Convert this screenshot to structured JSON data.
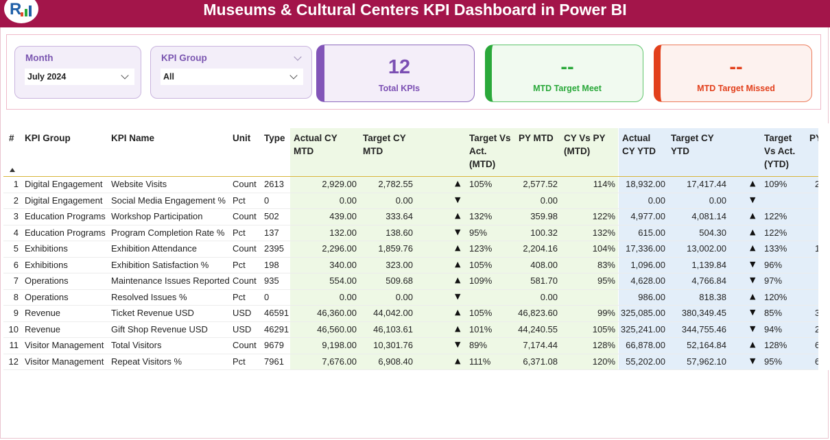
{
  "header": {
    "title": "Museums & Cultural Centers KPI Dashboard in Power BI"
  },
  "logo": {
    "letter": "R"
  },
  "filters": {
    "month": {
      "label": "Month",
      "value": "July 2024"
    },
    "kpi_group": {
      "label": "KPI Group",
      "value": "All"
    }
  },
  "cards": {
    "total": {
      "value": "12",
      "caption": "Total KPIs",
      "color": "#7b4fb3"
    },
    "meet": {
      "value": "--",
      "caption": "MTD Target Meet",
      "color": "#2aa83a"
    },
    "missed": {
      "value": "--",
      "caption": "MTD Target Missed",
      "color": "#e2401c"
    }
  },
  "table": {
    "headers": {
      "num": "#",
      "kpi_group": "KPI Group",
      "kpi_name": "KPI Name",
      "unit": "Unit",
      "type": "Type",
      "actual_cy_mtd": [
        "Actual CY",
        "MTD"
      ],
      "target_cy_mtd": [
        "Target CY",
        "MTD"
      ],
      "target_vs_act_mtd": [
        "Target Vs",
        "Act.",
        "(MTD)"
      ],
      "py_mtd": [
        "PY MTD"
      ],
      "cy_vs_py_mtd": [
        "CY Vs PY",
        "(MTD)"
      ],
      "actual_cy_ytd": [
        "Actual",
        "CY YTD"
      ],
      "target_cy_ytd": [
        "Target CY",
        "YTD"
      ],
      "target_vs_act_ytd": [
        "Target",
        "Vs Act.",
        "(YTD)"
      ],
      "py_ytd": [
        "PY"
      ]
    },
    "rows": [
      {
        "num": "1",
        "group": "Digital Engagement",
        "name": "Website Visits",
        "unit": "Count",
        "type": "2613",
        "act_mtd": "2,929.00",
        "tgt_mtd": "2,782.55",
        "arr_mtd": "▲",
        "pct_mtd": "105%",
        "py_mtd": "2,577.52",
        "cyvspy": "114%",
        "act_ytd": "18,932.00",
        "tgt_ytd": "17,417.44",
        "arr_ytd": "▲",
        "pct_ytd": "109%",
        "py_ytd": "2"
      },
      {
        "num": "2",
        "group": "Digital Engagement",
        "name": "Social Media Engagement %",
        "unit": "Pct",
        "type": "0",
        "act_mtd": "0.00",
        "tgt_mtd": "0.00",
        "arr_mtd": "▼",
        "pct_mtd": "",
        "py_mtd": "0.00",
        "cyvspy": "",
        "act_ytd": "0.00",
        "tgt_ytd": "0.00",
        "arr_ytd": "▼",
        "pct_ytd": "",
        "py_ytd": ""
      },
      {
        "num": "3",
        "group": "Education Programs",
        "name": "Workshop Participation",
        "unit": "Count",
        "type": "502",
        "act_mtd": "439.00",
        "tgt_mtd": "333.64",
        "arr_mtd": "▲",
        "pct_mtd": "132%",
        "py_mtd": "359.98",
        "cyvspy": "122%",
        "act_ytd": "4,977.00",
        "tgt_ytd": "4,081.14",
        "arr_ytd": "▲",
        "pct_ytd": "122%",
        "py_ytd": ""
      },
      {
        "num": "4",
        "group": "Education Programs",
        "name": "Program Completion Rate %",
        "unit": "Pct",
        "type": "137",
        "act_mtd": "132.00",
        "tgt_mtd": "138.60",
        "arr_mtd": "▼",
        "pct_mtd": "95%",
        "py_mtd": "100.32",
        "cyvspy": "132%",
        "act_ytd": "615.00",
        "tgt_ytd": "504.30",
        "arr_ytd": "▲",
        "pct_ytd": "122%",
        "py_ytd": ""
      },
      {
        "num": "5",
        "group": "Exhibitions",
        "name": "Exhibition Attendance",
        "unit": "Count",
        "type": "2395",
        "act_mtd": "2,296.00",
        "tgt_mtd": "1,859.76",
        "arr_mtd": "▲",
        "pct_mtd": "123%",
        "py_mtd": "2,204.16",
        "cyvspy": "104%",
        "act_ytd": "17,336.00",
        "tgt_ytd": "13,002.00",
        "arr_ytd": "▲",
        "pct_ytd": "133%",
        "py_ytd": "1"
      },
      {
        "num": "6",
        "group": "Exhibitions",
        "name": "Exhibition Satisfaction %",
        "unit": "Pct",
        "type": "198",
        "act_mtd": "340.00",
        "tgt_mtd": "323.00",
        "arr_mtd": "▲",
        "pct_mtd": "105%",
        "py_mtd": "408.00",
        "cyvspy": "83%",
        "act_ytd": "1,096.00",
        "tgt_ytd": "1,139.84",
        "arr_ytd": "▼",
        "pct_ytd": "96%",
        "py_ytd": ""
      },
      {
        "num": "7",
        "group": "Operations",
        "name": "Maintenance Issues Reported",
        "unit": "Count",
        "type": "935",
        "act_mtd": "554.00",
        "tgt_mtd": "509.68",
        "arr_mtd": "▲",
        "pct_mtd": "109%",
        "py_mtd": "581.70",
        "cyvspy": "95%",
        "act_ytd": "4,628.00",
        "tgt_ytd": "4,766.84",
        "arr_ytd": "▼",
        "pct_ytd": "97%",
        "py_ytd": ""
      },
      {
        "num": "8",
        "group": "Operations",
        "name": "Resolved Issues %",
        "unit": "Pct",
        "type": "0",
        "act_mtd": "0.00",
        "tgt_mtd": "0.00",
        "arr_mtd": "▼",
        "pct_mtd": "",
        "py_mtd": "0.00",
        "cyvspy": "",
        "act_ytd": "986.00",
        "tgt_ytd": "818.38",
        "arr_ytd": "▲",
        "pct_ytd": "120%",
        "py_ytd": ""
      },
      {
        "num": "9",
        "group": "Revenue",
        "name": "Ticket Revenue USD",
        "unit": "USD",
        "type": "46591",
        "act_mtd": "46,360.00",
        "tgt_mtd": "44,042.00",
        "arr_mtd": "▲",
        "pct_mtd": "105%",
        "py_mtd": "46,823.60",
        "cyvspy": "99%",
        "act_ytd": "325,085.00",
        "tgt_ytd": "380,349.45",
        "arr_ytd": "▼",
        "pct_ytd": "85%",
        "py_ytd": "34"
      },
      {
        "num": "10",
        "group": "Revenue",
        "name": "Gift Shop Revenue USD",
        "unit": "USD",
        "type": "46291",
        "act_mtd": "46,560.00",
        "tgt_mtd": "46,103.61",
        "arr_mtd": "▲",
        "pct_mtd": "101%",
        "py_mtd": "44,240.55",
        "cyvspy": "105%",
        "act_ytd": "325,241.00",
        "tgt_ytd": "344,755.46",
        "arr_ytd": "▼",
        "pct_ytd": "94%",
        "py_ytd": "2"
      },
      {
        "num": "11",
        "group": "Visitor Management",
        "name": "Total Visitors",
        "unit": "Count",
        "type": "9679",
        "act_mtd": "9,198.00",
        "tgt_mtd": "10,301.76",
        "arr_mtd": "▼",
        "pct_mtd": "89%",
        "py_mtd": "7,174.44",
        "cyvspy": "128%",
        "act_ytd": "66,878.00",
        "tgt_ytd": "52,164.84",
        "arr_ytd": "▲",
        "pct_ytd": "128%",
        "py_ytd": "6"
      },
      {
        "num": "12",
        "group": "Visitor Management",
        "name": "Repeat Visitors %",
        "unit": "Pct",
        "type": "7961",
        "act_mtd": "7,676.00",
        "tgt_mtd": "6,908.40",
        "arr_mtd": "▲",
        "pct_mtd": "111%",
        "py_mtd": "6,371.08",
        "cyvspy": "120%",
        "act_ytd": "55,202.00",
        "tgt_ytd": "57,962.10",
        "arr_ytd": "▼",
        "pct_ytd": "95%",
        "py_ytd": "6"
      }
    ]
  },
  "colors": {
    "title_bar": "#a3154a",
    "slicer_accent": "#7a55b0",
    "mtd_band": "#eef8e5",
    "ytd_band": "#e3eef9"
  }
}
